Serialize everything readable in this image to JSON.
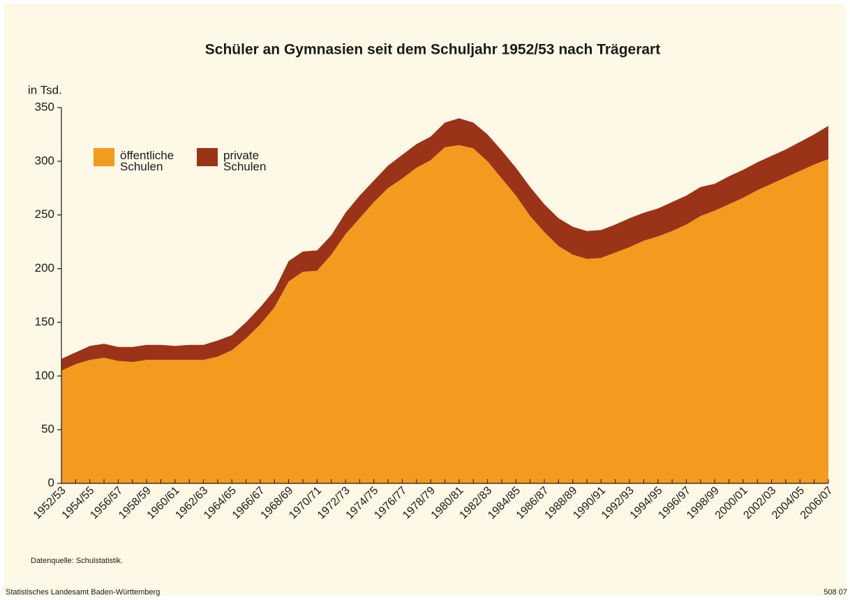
{
  "chart_data": {
    "type": "stacked_area",
    "title": "Schüler an Gymnasien seit dem Schuljahr 1952/53 nach Trägerart",
    "y_axis_label": "in Tsd.",
    "source": "Datenquelle: Schulstatistik.",
    "publisher": "Statistisches Landesamt Baden-Württemberg",
    "chart_number": "508 07",
    "categories": [
      "1952/53",
      null,
      "1954/55",
      null,
      "1956/57",
      null,
      "1958/59",
      null,
      "1960/61",
      null,
      "1962/63",
      null,
      "1964/65",
      null,
      "1966/67",
      null,
      "1968/69",
      null,
      "1970/71",
      null,
      "1972/73",
      null,
      "1974/75",
      null,
      "1976/77",
      null,
      "1978/79",
      null,
      "1980/81",
      null,
      "1982/83",
      null,
      "1984/85",
      null,
      "1986/87",
      null,
      "1988/89",
      null,
      "1990/91",
      null,
      "1992/93",
      null,
      "1994/95",
      null,
      "1996/97",
      null,
      "1998/99",
      null,
      "2000/01",
      null,
      "2002/03",
      null,
      "2004/05",
      null,
      "2006/07"
    ],
    "series": [
      {
        "name": "öffentliche Schulen",
        "color": "#f39a1f",
        "values": [
          105,
          111,
          115,
          117,
          114,
          113,
          115,
          115,
          115,
          115,
          115,
          118,
          124,
          135,
          148,
          164,
          188,
          197,
          198,
          213,
          232,
          247,
          262,
          275,
          284,
          294,
          301,
          313,
          315,
          312,
          300,
          284,
          268,
          249,
          234,
          221,
          213,
          209,
          210,
          215,
          220,
          226,
          230,
          235,
          241,
          249,
          254,
          260,
          266,
          273,
          279,
          285,
          291,
          297,
          302
        ]
      },
      {
        "name": "private Schulen",
        "color": "#9b3319",
        "values": [
          11,
          11,
          13,
          13,
          13,
          14,
          14,
          14,
          13,
          14,
          14,
          15,
          14,
          15,
          16,
          16,
          19,
          19,
          19,
          18,
          20,
          21,
          20,
          21,
          22,
          22,
          22,
          23,
          25,
          24,
          25,
          26,
          26,
          27,
          26,
          26,
          26,
          26,
          26,
          26,
          27,
          26,
          26,
          27,
          27,
          27,
          25,
          26,
          26,
          26,
          26,
          26,
          27,
          28,
          31
        ]
      }
    ],
    "ylim": [
      0,
      350
    ],
    "yticks": [
      0,
      50,
      100,
      150,
      200,
      250,
      300,
      350
    ]
  }
}
